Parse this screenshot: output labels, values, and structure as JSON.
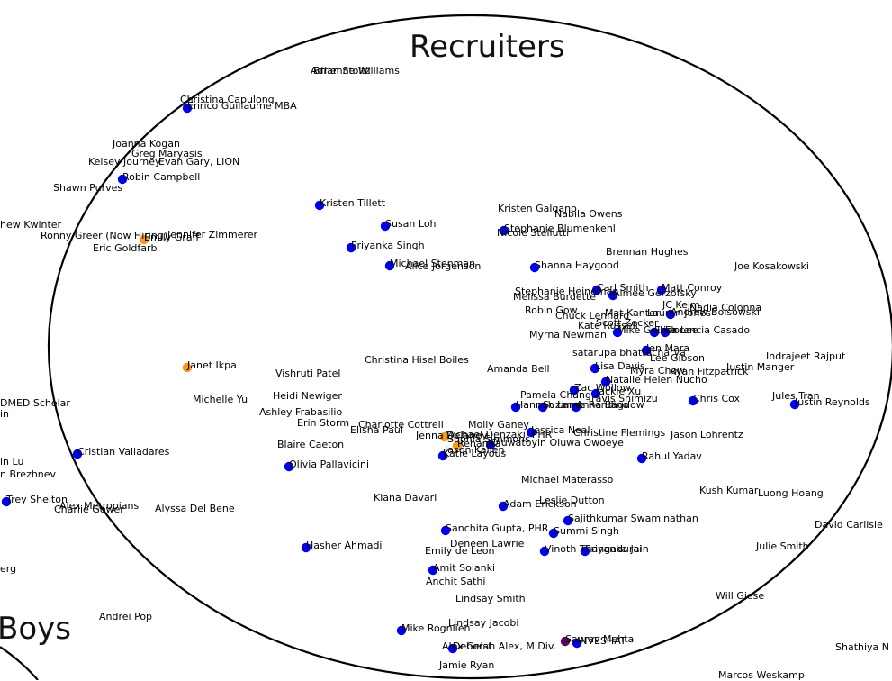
{
  "clusters": [
    {
      "name": "Recruiters"
    },
    {
      "name": "Boys"
    }
  ],
  "colors": {
    "blue": "#0000ee",
    "orange": "#f59a1c",
    "purple": "#5a0a5a",
    "ring": "#000000"
  },
  "nodes": [
    {
      "label": "Adrienne Williams",
      "color": ""
    },
    {
      "label": "Brian Stoltz",
      "color": ""
    },
    {
      "label": "Christina Capulong",
      "color": ""
    },
    {
      "label": "Enrico Guillaume MBA",
      "color": "blue"
    },
    {
      "label": "Joanna Kogan",
      "color": ""
    },
    {
      "label": "Greg Maryasis",
      "color": ""
    },
    {
      "label": "Kelsey Journey",
      "color": ""
    },
    {
      "label": "Evan Gary, LION",
      "color": ""
    },
    {
      "label": "Robin Campbell",
      "color": "blue"
    },
    {
      "label": "Shawn Purves",
      "color": ""
    },
    {
      "label": "Kristen Tillett",
      "color": "blue"
    },
    {
      "label": "Kristen Galgano",
      "color": ""
    },
    {
      "label": "Nabila Owens",
      "color": ""
    },
    {
      "label": "Susan Loh",
      "color": "blue"
    },
    {
      "label": "Stephanie Blumenkehl",
      "color": "blue"
    },
    {
      "label": "Nicole Stellutti",
      "color": ""
    },
    {
      "label": "hew Kwinter",
      "color": ""
    },
    {
      "label": "Ronny Greer (Now Hiring)",
      "color": ""
    },
    {
      "label": "Emily Graff",
      "color": "orange"
    },
    {
      "label": "Jennifer Zimmerer",
      "color": ""
    },
    {
      "label": "Eric Goldfarb",
      "color": ""
    },
    {
      "label": "Priyanka Singh",
      "color": "blue"
    },
    {
      "label": "Brennan Hughes",
      "color": ""
    },
    {
      "label": "Michael Stenman",
      "color": "blue"
    },
    {
      "label": "Alice Jorgenson",
      "color": ""
    },
    {
      "label": "Shanna Haygood",
      "color": "blue"
    },
    {
      "label": "Joe Kosakowski",
      "color": ""
    },
    {
      "label": "Carl Smith",
      "color": "blue"
    },
    {
      "label": "Matt Conroy",
      "color": "blue"
    },
    {
      "label": "Stephanie Heineman",
      "color": ""
    },
    {
      "label": "Aimee Gerzofsky",
      "color": "blue"
    },
    {
      "label": "Melissa Burdette",
      "color": ""
    },
    {
      "label": "JC Kelm",
      "color": ""
    },
    {
      "label": "Robin Gow",
      "color": ""
    },
    {
      "label": "Mat Kanter",
      "color": ""
    },
    {
      "label": "Lauren Jones",
      "color": ""
    },
    {
      "label": "Andrew Boisowski",
      "color": "blue"
    },
    {
      "label": "Nadia Colonna",
      "color": ""
    },
    {
      "label": "Chuck Lennard",
      "color": ""
    },
    {
      "label": "Scott Zecker",
      "color": ""
    },
    {
      "label": "Kate Russell",
      "color": ""
    },
    {
      "label": "Elisa Lee",
      "color": "blue"
    },
    {
      "label": "Myrna Newman",
      "color": ""
    },
    {
      "label": "Mike Gelber",
      "color": "blue"
    },
    {
      "label": "Florencia Casado",
      "color": "blue"
    },
    {
      "label": "Jen Mara",
      "color": "blue"
    },
    {
      "label": "satarupa bhattacharya",
      "color": ""
    },
    {
      "label": "Lee Gibson",
      "color": ""
    },
    {
      "label": "Indrajeet Rajput",
      "color": ""
    },
    {
      "label": "Janet Ikpa",
      "color": "orange"
    },
    {
      "label": "Christina Hisel Boiles",
      "color": ""
    },
    {
      "label": "Lisa Davis",
      "color": "blue"
    },
    {
      "label": "Amanda Bell",
      "color": ""
    },
    {
      "label": "Myra Chow",
      "color": ""
    },
    {
      "label": "Ryan Fitzpatrick",
      "color": ""
    },
    {
      "label": "Justin Manger",
      "color": ""
    },
    {
      "label": "Vishruti Patel",
      "color": ""
    },
    {
      "label": "Natalie Helen Nucho",
      "color": "blue"
    },
    {
      "label": "Zac Wollow",
      "color": "blue"
    },
    {
      "label": "Jackie Xu",
      "color": "blue"
    },
    {
      "label": "Pamela Chang",
      "color": ""
    },
    {
      "label": "Travis Shimizu",
      "color": ""
    },
    {
      "label": "Chris Cox",
      "color": "blue"
    },
    {
      "label": "Jules Tran",
      "color": ""
    },
    {
      "label": "Justin Reynolds",
      "color": "blue"
    },
    {
      "label": "DMED Scholar",
      "color": ""
    },
    {
      "label": "Michelle Yu",
      "color": ""
    },
    {
      "label": "Heidi Newiger",
      "color": ""
    },
    {
      "label": "Hannah Lane",
      "color": "blue"
    },
    {
      "label": "Suzanne Rendino",
      "color": "blue"
    },
    {
      "label": "Anna Bagdow",
      "color": "blue"
    },
    {
      "label": "in",
      "color": ""
    },
    {
      "label": "Ashley Frabasilio",
      "color": ""
    },
    {
      "label": "Erin Storm",
      "color": ""
    },
    {
      "label": "Charlotte Cottrell",
      "color": ""
    },
    {
      "label": "Molly Ganey",
      "color": ""
    },
    {
      "label": "Jessica Neal",
      "color": "blue"
    },
    {
      "label": "Elisha Paul",
      "color": ""
    },
    {
      "label": "Christine Flemings",
      "color": ""
    },
    {
      "label": "Jason Lohrentz",
      "color": ""
    },
    {
      "label": "Jenna Delaney",
      "color": ""
    },
    {
      "label": "Michael Denzaki, PHR",
      "color": "orange"
    },
    {
      "label": "Sophia Simmons",
      "color": ""
    },
    {
      "label": "Rehanna",
      "color": "orange"
    },
    {
      "label": "Oluwatoyin Oluwa Owoeye",
      "color": "blue"
    },
    {
      "label": "Blaire Caeton",
      "color": ""
    },
    {
      "label": "Jason Kallen",
      "color": ""
    },
    {
      "label": "Katie Layous",
      "color": "blue"
    },
    {
      "label": "Cristian Valladares",
      "color": "blue"
    },
    {
      "label": "Rahul Yadav",
      "color": "blue"
    },
    {
      "label": "Olivia Pallavicini",
      "color": "blue"
    },
    {
      "label": "in Lu",
      "color": ""
    },
    {
      "label": "n Brezhnev",
      "color": ""
    },
    {
      "label": "Michael Materasso",
      "color": ""
    },
    {
      "label": "Kush Kumar",
      "color": ""
    },
    {
      "label": "Kiana Davari",
      "color": ""
    },
    {
      "label": "Luong Hoang",
      "color": ""
    },
    {
      "label": "Leslie Dutton",
      "color": ""
    },
    {
      "label": "Adam Erickson",
      "color": "blue"
    },
    {
      "label": "Trey Shelton",
      "color": "blue"
    },
    {
      "label": "Alex Metropians",
      "color": ""
    },
    {
      "label": "Charlie Gower",
      "color": ""
    },
    {
      "label": "Alyssa Del Bene",
      "color": ""
    },
    {
      "label": "Sajithkumar Swaminathan",
      "color": "blue"
    },
    {
      "label": "David Carlisle",
      "color": ""
    },
    {
      "label": "Sanchita Gupta, PHR",
      "color": "blue"
    },
    {
      "label": "Summi Singh",
      "color": "blue"
    },
    {
      "label": "Deneen Lawrie",
      "color": ""
    },
    {
      "label": "Hasher Ahmadi",
      "color": "blue"
    },
    {
      "label": "Emily de Leon",
      "color": ""
    },
    {
      "label": "Vinoth Thangadurai",
      "color": "blue"
    },
    {
      "label": "Priyanka Jain",
      "color": "blue"
    },
    {
      "label": "Julie Smith",
      "color": ""
    },
    {
      "label": "erg",
      "color": ""
    },
    {
      "label": "Amit Solanki",
      "color": "blue"
    },
    {
      "label": "Anchit Sathi",
      "color": ""
    },
    {
      "label": "Will Giese",
      "color": ""
    },
    {
      "label": "Lindsay Smith",
      "color": ""
    },
    {
      "label": "Andrei Pop",
      "color": ""
    },
    {
      "label": "Lindsay Jacobi",
      "color": ""
    },
    {
      "label": "Mike Rognlien",
      "color": "blue"
    },
    {
      "label": "Saurav Mehta",
      "color": "purple"
    },
    {
      "label": "INVESHAT",
      "color": "blue"
    },
    {
      "label": "Alex Gelst",
      "color": ""
    },
    {
      "label": "Deborah Alex, M.Div.",
      "color": "blue"
    },
    {
      "label": "Shathiya N",
      "color": ""
    },
    {
      "label": "Jamie Ryan",
      "color": ""
    },
    {
      "label": "Marcos Weskamp",
      "color": ""
    }
  ]
}
